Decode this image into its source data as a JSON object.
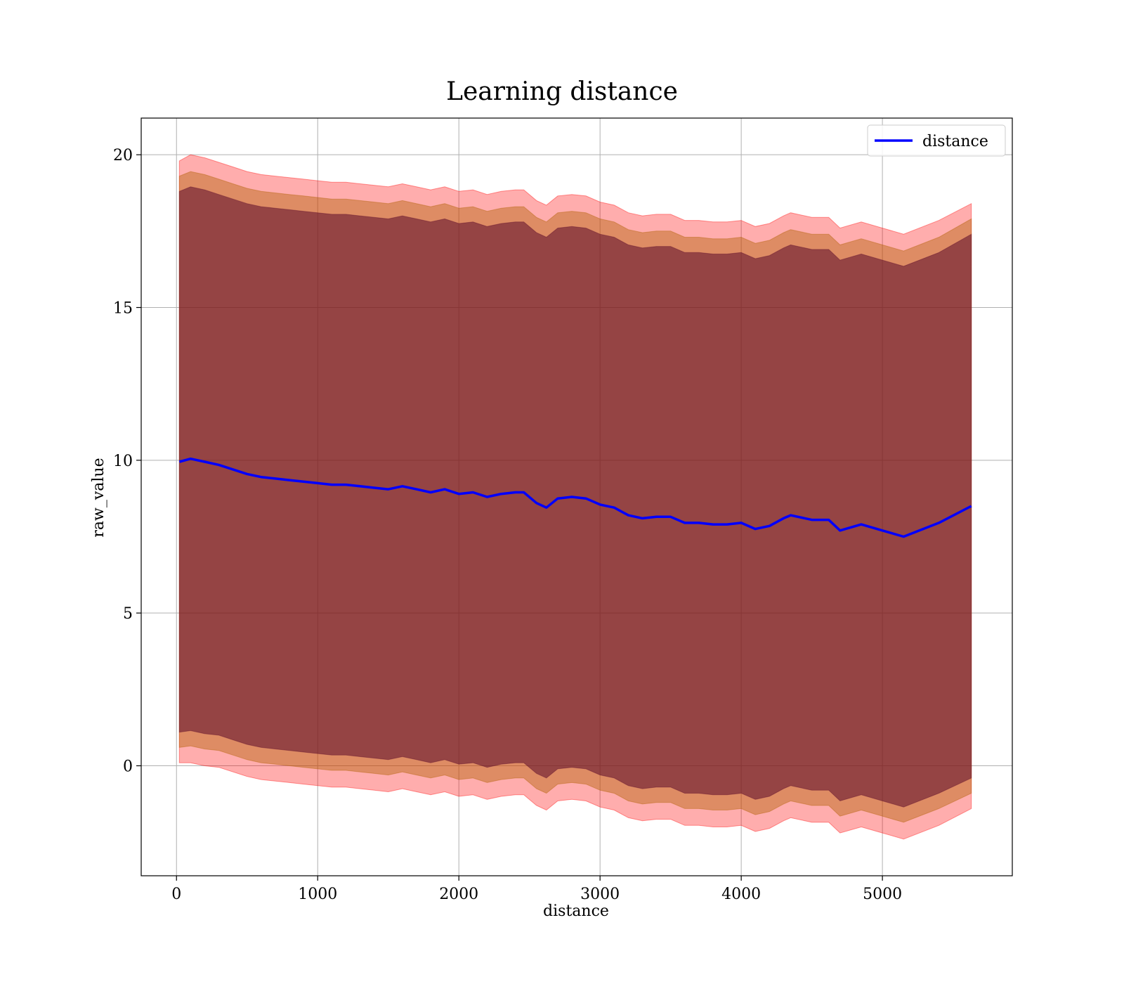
{
  "chart_data": {
    "type": "line",
    "title": "Learning distance",
    "xlabel": "distance",
    "ylabel": "raw_value",
    "xlim": [
      -250,
      5920
    ],
    "ylim": [
      -3.6,
      21.2
    ],
    "xticks": [
      0,
      1000,
      2000,
      3000,
      4000,
      5000
    ],
    "yticks": [
      0,
      5,
      10,
      15,
      20
    ],
    "grid": true,
    "legend": {
      "position": "top-right",
      "entries": [
        "distance"
      ]
    },
    "colors": {
      "line": "#0000ff",
      "band_outer": "#ff0000",
      "band_middle": "#b06000",
      "band_inner": "#5a0a2a"
    },
    "series": [
      {
        "name": "distance",
        "x": [
          20,
          100,
          200,
          300,
          400,
          500,
          600,
          700,
          800,
          900,
          1000,
          1100,
          1200,
          1300,
          1400,
          1500,
          1600,
          1700,
          1800,
          1900,
          2000,
          2100,
          2200,
          2300,
          2400,
          2460,
          2550,
          2620,
          2700,
          2800,
          2900,
          3000,
          3100,
          3200,
          3300,
          3400,
          3500,
          3600,
          3700,
          3800,
          3900,
          4000,
          4100,
          4200,
          4300,
          4350,
          4500,
          4620,
          4700,
          4850,
          5000,
          5150,
          5400,
          5630
        ],
        "y": [
          9.95,
          10.05,
          9.95,
          9.85,
          9.7,
          9.55,
          9.45,
          9.4,
          9.35,
          9.3,
          9.25,
          9.2,
          9.2,
          9.15,
          9.1,
          9.05,
          9.15,
          9.05,
          8.95,
          9.05,
          8.9,
          8.95,
          8.8,
          8.9,
          8.95,
          8.95,
          8.6,
          8.45,
          8.75,
          8.8,
          8.75,
          8.55,
          8.45,
          8.2,
          8.1,
          8.15,
          8.15,
          7.95,
          7.95,
          7.9,
          7.9,
          7.95,
          7.75,
          7.85,
          8.1,
          8.2,
          8.05,
          8.05,
          7.7,
          7.9,
          7.7,
          7.5,
          7.95,
          8.5
        ]
      }
    ],
    "bands": [
      {
        "x": [
          20,
          100,
          200,
          300,
          400,
          500,
          600,
          700,
          800,
          900,
          1000,
          1100,
          1200,
          1300,
          1400,
          1500,
          1600,
          1700,
          1800,
          1900,
          2000,
          2100,
          2200,
          2300,
          2400,
          2460,
          2550,
          2620,
          2700,
          2800,
          2900,
          3000,
          3100,
          3200,
          3300,
          3400,
          3500,
          3600,
          3700,
          3800,
          3900,
          4000,
          4100,
          4200,
          4300,
          4350,
          4500,
          4620,
          4700,
          4850,
          5000,
          5150,
          5400,
          5630
        ],
        "upper": [
          19.8,
          20.0,
          19.9,
          19.75,
          19.6,
          19.45,
          19.35,
          19.3,
          19.25,
          19.2,
          19.15,
          19.1,
          19.1,
          19.05,
          19.0,
          18.95,
          19.05,
          18.95,
          18.85,
          18.95,
          18.8,
          18.85,
          18.7,
          18.8,
          18.85,
          18.85,
          18.5,
          18.35,
          18.65,
          18.7,
          18.65,
          18.45,
          18.35,
          18.1,
          18.0,
          18.05,
          18.05,
          17.85,
          17.85,
          17.8,
          17.8,
          17.85,
          17.65,
          17.75,
          18.0,
          18.1,
          17.95,
          17.95,
          17.6,
          17.8,
          17.6,
          17.4,
          17.85,
          18.4
        ],
        "lower": [
          0.1,
          0.1,
          0.0,
          -0.05,
          -0.2,
          -0.35,
          -0.45,
          -0.5,
          -0.55,
          -0.6,
          -0.65,
          -0.7,
          -0.7,
          -0.75,
          -0.8,
          -0.85,
          -0.75,
          -0.85,
          -0.95,
          -0.85,
          -1.0,
          -0.95,
          -1.1,
          -1.0,
          -0.95,
          -0.95,
          -1.3,
          -1.45,
          -1.15,
          -1.1,
          -1.15,
          -1.35,
          -1.45,
          -1.7,
          -1.8,
          -1.75,
          -1.75,
          -1.95,
          -1.95,
          -2.0,
          -2.0,
          -1.95,
          -2.15,
          -2.05,
          -1.8,
          -1.7,
          -1.85,
          -1.85,
          -2.2,
          -2.0,
          -2.2,
          -2.4,
          -1.95,
          -1.4
        ]
      },
      {
        "x": [
          20,
          100,
          200,
          300,
          400,
          500,
          600,
          700,
          800,
          900,
          1000,
          1100,
          1200,
          1300,
          1400,
          1500,
          1600,
          1700,
          1800,
          1900,
          2000,
          2100,
          2200,
          2300,
          2400,
          2460,
          2550,
          2620,
          2700,
          2800,
          2900,
          3000,
          3100,
          3200,
          3300,
          3400,
          3500,
          3600,
          3700,
          3800,
          3900,
          4000,
          4100,
          4200,
          4300,
          4350,
          4500,
          4620,
          4700,
          4850,
          5000,
          5150,
          5400,
          5630
        ],
        "upper": [
          19.3,
          19.45,
          19.35,
          19.2,
          19.05,
          18.9,
          18.8,
          18.75,
          18.7,
          18.65,
          18.6,
          18.55,
          18.55,
          18.5,
          18.45,
          18.4,
          18.5,
          18.4,
          18.3,
          18.4,
          18.25,
          18.3,
          18.15,
          18.25,
          18.3,
          18.3,
          17.95,
          17.8,
          18.1,
          18.15,
          18.1,
          17.9,
          17.8,
          17.55,
          17.45,
          17.5,
          17.5,
          17.3,
          17.3,
          17.25,
          17.25,
          17.3,
          17.1,
          17.2,
          17.45,
          17.55,
          17.4,
          17.4,
          17.05,
          17.25,
          17.05,
          16.85,
          17.3,
          17.9
        ],
        "lower": [
          0.6,
          0.65,
          0.55,
          0.5,
          0.35,
          0.2,
          0.1,
          0.05,
          0.0,
          -0.05,
          -0.1,
          -0.15,
          -0.15,
          -0.2,
          -0.25,
          -0.3,
          -0.2,
          -0.3,
          -0.4,
          -0.3,
          -0.45,
          -0.4,
          -0.55,
          -0.45,
          -0.4,
          -0.4,
          -0.75,
          -0.9,
          -0.6,
          -0.55,
          -0.6,
          -0.8,
          -0.9,
          -1.15,
          -1.25,
          -1.2,
          -1.2,
          -1.4,
          -1.4,
          -1.45,
          -1.45,
          -1.4,
          -1.6,
          -1.5,
          -1.25,
          -1.15,
          -1.3,
          -1.3,
          -1.65,
          -1.45,
          -1.65,
          -1.85,
          -1.4,
          -0.9
        ]
      },
      {
        "x": [
          20,
          100,
          200,
          300,
          400,
          500,
          600,
          700,
          800,
          900,
          1000,
          1100,
          1200,
          1300,
          1400,
          1500,
          1600,
          1700,
          1800,
          1900,
          2000,
          2100,
          2200,
          2300,
          2400,
          2460,
          2550,
          2620,
          2700,
          2800,
          2900,
          3000,
          3100,
          3200,
          3300,
          3400,
          3500,
          3600,
          3700,
          3800,
          3900,
          4000,
          4100,
          4200,
          4300,
          4350,
          4500,
          4620,
          4700,
          4850,
          5000,
          5150,
          5400,
          5630
        ],
        "upper": [
          18.8,
          18.95,
          18.85,
          18.7,
          18.55,
          18.4,
          18.3,
          18.25,
          18.2,
          18.15,
          18.1,
          18.05,
          18.05,
          18.0,
          17.95,
          17.9,
          18.0,
          17.9,
          17.8,
          17.9,
          17.75,
          17.8,
          17.65,
          17.75,
          17.8,
          17.8,
          17.45,
          17.3,
          17.6,
          17.65,
          17.6,
          17.4,
          17.3,
          17.05,
          16.95,
          17.0,
          17.0,
          16.8,
          16.8,
          16.75,
          16.75,
          16.8,
          16.6,
          16.7,
          16.95,
          17.05,
          16.9,
          16.9,
          16.55,
          16.75,
          16.55,
          16.35,
          16.8,
          17.4
        ],
        "lower": [
          1.1,
          1.15,
          1.05,
          1.0,
          0.85,
          0.7,
          0.6,
          0.55,
          0.5,
          0.45,
          0.4,
          0.35,
          0.35,
          0.3,
          0.25,
          0.2,
          0.3,
          0.2,
          0.1,
          0.2,
          0.05,
          0.1,
          -0.05,
          0.05,
          0.1,
          0.1,
          -0.25,
          -0.4,
          -0.1,
          -0.05,
          -0.1,
          -0.3,
          -0.4,
          -0.65,
          -0.75,
          -0.7,
          -0.7,
          -0.9,
          -0.9,
          -0.95,
          -0.95,
          -0.9,
          -1.1,
          -1.0,
          -0.75,
          -0.65,
          -0.8,
          -0.8,
          -1.15,
          -0.95,
          -1.15,
          -1.35,
          -0.9,
          -0.4
        ]
      }
    ]
  }
}
